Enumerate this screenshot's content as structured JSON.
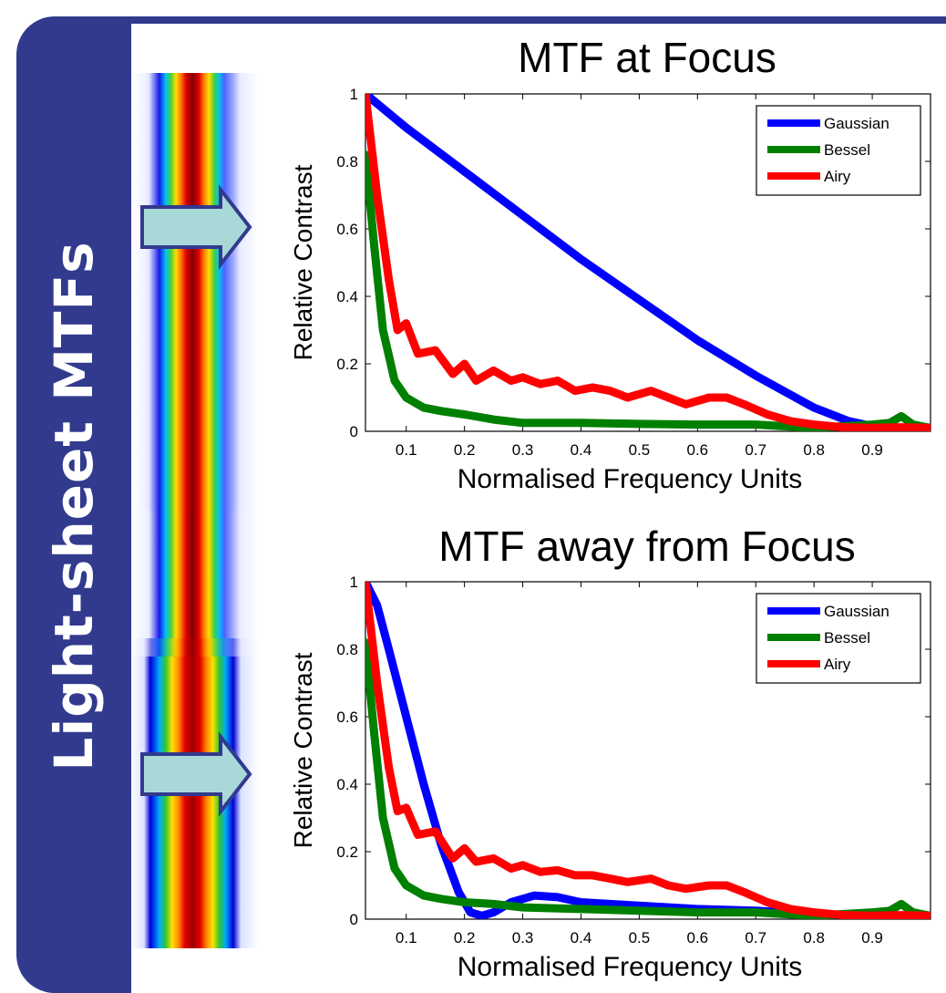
{
  "sidebar": {
    "title": "Light-sheet MTFs",
    "color": "#323a8e"
  },
  "chart_data": [
    {
      "type": "line",
      "title": "MTF at Focus",
      "xlabel": "Normalised Frequency Units",
      "ylabel": "Relative Contrast",
      "xlim": [
        0.03,
        1.0
      ],
      "ylim": [
        0,
        1
      ],
      "xticks": [
        "0.1",
        "0.2",
        "0.3",
        "0.4",
        "0.5",
        "0.6",
        "0.7",
        "0.8",
        "0.9"
      ],
      "xtick_values": [
        0.1,
        0.2,
        0.3,
        0.4,
        0.5,
        0.6,
        0.7,
        0.8,
        0.9
      ],
      "yticks": [
        "0",
        "0.2",
        "0.4",
        "0.6",
        "0.8",
        "1"
      ],
      "ytick_values": [
        0,
        0.2,
        0.4,
        0.6,
        0.8,
        1
      ],
      "legend_position": "top-right",
      "series": [
        {
          "name": "Gaussian",
          "color": "#0000ff",
          "x": [
            0.03,
            0.1,
            0.2,
            0.3,
            0.4,
            0.5,
            0.6,
            0.7,
            0.8,
            0.86,
            0.9,
            0.94,
            1.0
          ],
          "y": [
            1.0,
            0.9,
            0.77,
            0.64,
            0.51,
            0.39,
            0.27,
            0.165,
            0.07,
            0.03,
            0.015,
            0.01,
            0.01
          ]
        },
        {
          "name": "Bessel",
          "color": "#008000",
          "x": [
            0.03,
            0.045,
            0.06,
            0.08,
            0.1,
            0.13,
            0.16,
            0.2,
            0.25,
            0.3,
            0.4,
            0.5,
            0.6,
            0.7,
            0.8,
            0.9,
            0.93,
            0.95,
            0.97,
            1.0
          ],
          "y": [
            0.82,
            0.55,
            0.3,
            0.15,
            0.1,
            0.07,
            0.06,
            0.05,
            0.035,
            0.025,
            0.025,
            0.022,
            0.02,
            0.02,
            0.01,
            0.02,
            0.025,
            0.045,
            0.02,
            0.01
          ]
        },
        {
          "name": "Airy",
          "color": "#ff0000",
          "x": [
            0.03,
            0.05,
            0.07,
            0.085,
            0.1,
            0.12,
            0.15,
            0.18,
            0.2,
            0.22,
            0.25,
            0.28,
            0.3,
            0.33,
            0.36,
            0.39,
            0.42,
            0.45,
            0.48,
            0.52,
            0.55,
            0.58,
            0.62,
            0.65,
            0.68,
            0.72,
            0.76,
            0.8,
            0.85,
            0.9,
            0.95,
            1.0
          ],
          "y": [
            1.0,
            0.7,
            0.45,
            0.3,
            0.32,
            0.23,
            0.24,
            0.17,
            0.2,
            0.15,
            0.18,
            0.15,
            0.16,
            0.14,
            0.15,
            0.12,
            0.13,
            0.12,
            0.1,
            0.12,
            0.1,
            0.08,
            0.1,
            0.1,
            0.08,
            0.05,
            0.03,
            0.02,
            0.012,
            0.01,
            0.012,
            0.01
          ]
        }
      ]
    },
    {
      "type": "line",
      "title": "MTF away from Focus",
      "xlabel": "Normalised Frequency Units",
      "ylabel": "Relative Contrast",
      "xlim": [
        0.03,
        1.0
      ],
      "ylim": [
        0,
        1
      ],
      "xticks": [
        "0.1",
        "0.2",
        "0.3",
        "0.4",
        "0.5",
        "0.6",
        "0.7",
        "0.8",
        "0.9"
      ],
      "xtick_values": [
        0.1,
        0.2,
        0.3,
        0.4,
        0.5,
        0.6,
        0.7,
        0.8,
        0.9
      ],
      "yticks": [
        "0",
        "0.2",
        "0.4",
        "0.6",
        "0.8",
        "1"
      ],
      "ytick_values": [
        0,
        0.2,
        0.4,
        0.6,
        0.8,
        1
      ],
      "legend_position": "top-right",
      "series": [
        {
          "name": "Gaussian",
          "color": "#0000ff",
          "x": [
            0.03,
            0.05,
            0.07,
            0.1,
            0.13,
            0.16,
            0.19,
            0.21,
            0.23,
            0.25,
            0.28,
            0.32,
            0.36,
            0.4,
            0.5,
            0.6,
            0.7,
            0.8,
            0.9,
            1.0
          ],
          "y": [
            1.0,
            0.93,
            0.8,
            0.6,
            0.4,
            0.22,
            0.08,
            0.02,
            0.01,
            0.02,
            0.05,
            0.07,
            0.065,
            0.05,
            0.04,
            0.03,
            0.025,
            0.015,
            0.01,
            0.01
          ]
        },
        {
          "name": "Bessel",
          "color": "#008000",
          "x": [
            0.03,
            0.045,
            0.06,
            0.08,
            0.1,
            0.13,
            0.16,
            0.2,
            0.25,
            0.3,
            0.4,
            0.5,
            0.6,
            0.7,
            0.8,
            0.9,
            0.93,
            0.95,
            0.97,
            1.0
          ],
          "y": [
            0.82,
            0.55,
            0.3,
            0.15,
            0.1,
            0.07,
            0.06,
            0.05,
            0.045,
            0.035,
            0.03,
            0.025,
            0.02,
            0.02,
            0.01,
            0.02,
            0.025,
            0.045,
            0.02,
            0.01
          ]
        },
        {
          "name": "Airy",
          "color": "#ff0000",
          "x": [
            0.03,
            0.05,
            0.07,
            0.085,
            0.1,
            0.12,
            0.15,
            0.18,
            0.2,
            0.22,
            0.25,
            0.28,
            0.3,
            0.33,
            0.36,
            0.39,
            0.42,
            0.45,
            0.48,
            0.52,
            0.55,
            0.58,
            0.62,
            0.65,
            0.68,
            0.72,
            0.76,
            0.8,
            0.85,
            0.9,
            0.95,
            1.0
          ],
          "y": [
            1.0,
            0.7,
            0.45,
            0.32,
            0.33,
            0.25,
            0.26,
            0.18,
            0.21,
            0.17,
            0.18,
            0.15,
            0.16,
            0.14,
            0.145,
            0.13,
            0.13,
            0.12,
            0.11,
            0.12,
            0.1,
            0.09,
            0.1,
            0.1,
            0.08,
            0.05,
            0.03,
            0.02,
            0.012,
            0.01,
            0.012,
            0.01
          ]
        }
      ]
    }
  ]
}
